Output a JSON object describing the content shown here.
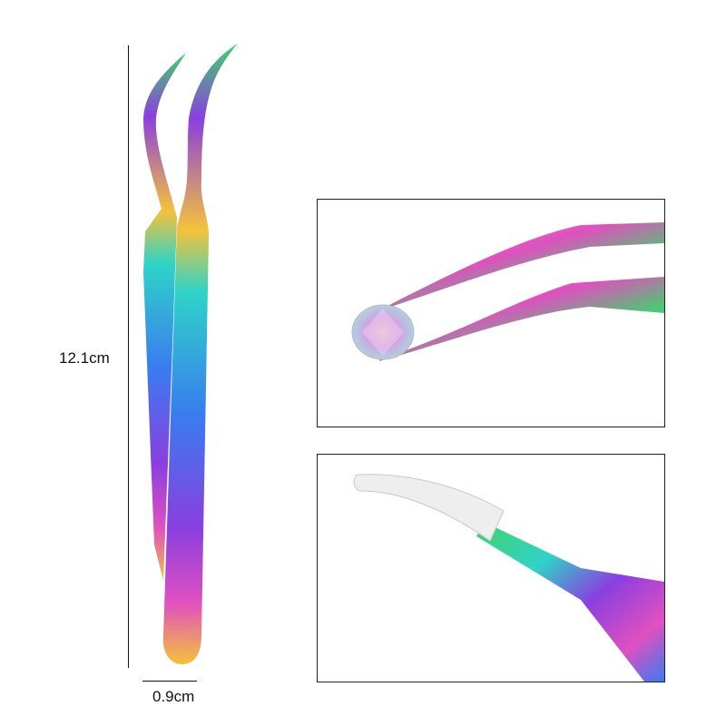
{
  "dimensions": {
    "length_label": "12.1cm",
    "width_label": "0.9cm"
  },
  "product": {
    "icon": "curved-tweezers",
    "finish": "rainbow-iridescent",
    "colors": [
      "#2fd3c8",
      "#3a7bf0",
      "#8a3fe0",
      "#e050c0",
      "#f4c23a",
      "#3fd36a"
    ]
  },
  "detail_panels": [
    {
      "icon": "tweezers-holding-rhinestone"
    },
    {
      "icon": "tweezers-tip-with-protective-cap"
    }
  ]
}
